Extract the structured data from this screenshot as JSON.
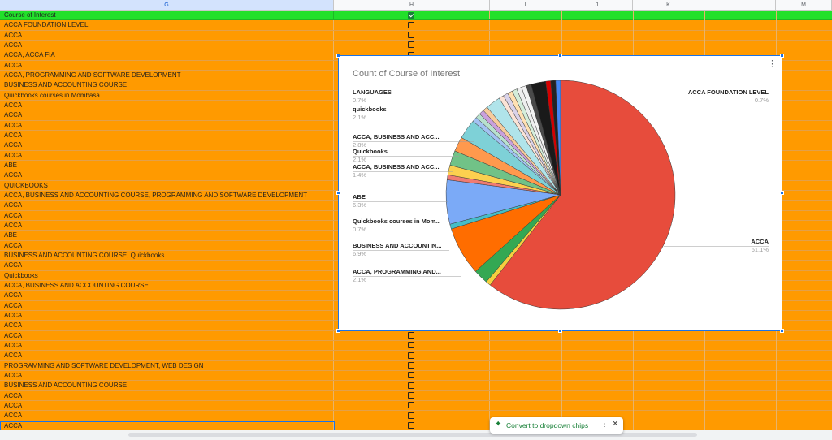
{
  "columns": [
    "G",
    "H",
    "I",
    "J",
    "K",
    "L",
    "M"
  ],
  "header_row": {
    "label": "Course of Interest",
    "checked": true
  },
  "rows": [
    "ACCA FOUNDATION LEVEL",
    "ACCA",
    "ACCA",
    "ACCA, ACCA FIA",
    "ACCA",
    "ACCA, PROGRAMMING AND SOFTWARE DEVELOPMENT",
    "BUSINESS AND ACCOUNTING COURSE",
    "Quickbooks courses in Mombasa",
    "ACCA",
    "ACCA",
    "ACCA",
    "ACCA",
    "ACCA",
    "ACCA",
    "ABE",
    "ACCA",
    "QUICKBOOKS",
    "ACCA, BUSINESS AND ACCOUNTING COURSE, PROGRAMMING AND SOFTWARE DEVELOPMENT",
    "ACCA",
    "ACCA",
    "ACCA",
    "ABE",
    "ACCA",
    "BUSINESS AND ACCOUNTING COURSE, Quickbooks",
    "ACCA",
    "Quickbooks",
    "ACCA, BUSINESS AND ACCOUNTING COURSE",
    "ACCA",
    "ACCA",
    "ACCA",
    "ACCA",
    "ACCA",
    "ACCA",
    "ACCA",
    "PROGRAMMING AND SOFTWARE DEVELOPMENT, WEB DESIGN",
    "ACCA",
    "BUSINESS AND ACCOUNTING COURSE",
    "ACCA",
    "ACCA",
    "ACCA",
    "ACCA"
  ],
  "chart": {
    "menu_icon": "more-vert-icon",
    "chart_data": {
      "type": "pie",
      "title": "Count of Course of Interest",
      "labels": [
        {
          "name": "LANGUAGES",
          "pct": "0.7%",
          "side": "left"
        },
        {
          "name": "quickbooks",
          "pct": "2.1%",
          "side": "left"
        },
        {
          "name": "ACCA, BUSINESS AND ACC...",
          "pct": "2.8%",
          "side": "left"
        },
        {
          "name": "Quickbooks",
          "pct": "2.1%",
          "side": "left"
        },
        {
          "name": "ACCA, BUSINESS AND ACC...",
          "pct": "1.4%",
          "side": "left"
        },
        {
          "name": "ABE",
          "pct": "6.3%",
          "side": "left"
        },
        {
          "name": "Quickbooks courses in Mom...",
          "pct": "0.7%",
          "side": "left"
        },
        {
          "name": "BUSINESS AND ACCOUNTIN...",
          "pct": "6.9%",
          "side": "left"
        },
        {
          "name": "ACCA, PROGRAMMING AND...",
          "pct": "2.1%",
          "side": "left"
        },
        {
          "name": "ACCA FOUNDATION LEVEL",
          "pct": "0.7%",
          "side": "right"
        },
        {
          "name": "ACCA",
          "pct": "61.1%",
          "side": "right"
        }
      ],
      "slices": [
        {
          "value": 61.1,
          "color": "#e74c3c"
        },
        {
          "value": 0.7,
          "color": "#f4d03f"
        },
        {
          "value": 2.1,
          "color": "#34a853"
        },
        {
          "value": 6.9,
          "color": "#ff6d00"
        },
        {
          "value": 0.7,
          "color": "#46bdc6"
        },
        {
          "value": 6.3,
          "color": "#7baaf7"
        },
        {
          "value": 0.7,
          "color": "#f07b72"
        },
        {
          "value": 1.4,
          "color": "#fcd04f"
        },
        {
          "value": 2.1,
          "color": "#71c287"
        },
        {
          "value": 2.1,
          "color": "#ff994d"
        },
        {
          "value": 2.8,
          "color": "#7ed1d7"
        },
        {
          "value": 0.7,
          "color": "#a3c2f2"
        },
        {
          "value": 0.7,
          "color": "#b7e1cd"
        },
        {
          "value": 0.7,
          "color": "#c9a0dc"
        },
        {
          "value": 0.7,
          "color": "#f7cb9b"
        },
        {
          "value": 2.1,
          "color": "#b0e4ea"
        },
        {
          "value": 0.7,
          "color": "#fbe3d6"
        },
        {
          "value": 0.7,
          "color": "#d9d2e9"
        },
        {
          "value": 0.7,
          "color": "#ffe0b2"
        },
        {
          "value": 0.7,
          "color": "#d4edda"
        },
        {
          "value": 0.7,
          "color": "#eeeeee"
        },
        {
          "value": 0.7,
          "color": "#f2f2f2"
        },
        {
          "value": 0.7,
          "color": "#4a4a4a"
        },
        {
          "value": 2.1,
          "color": "#1a1a1a"
        },
        {
          "value": 0.7,
          "color": "#d50000"
        },
        {
          "value": 0.7,
          "color": "#222222"
        },
        {
          "value": 0.7,
          "color": "#4285f4"
        }
      ]
    }
  },
  "chip": {
    "label": "Convert to dropdown chips",
    "spark_icon": "sparkle-icon",
    "more_icon": "more-vert-icon",
    "close_icon": "close-icon"
  }
}
